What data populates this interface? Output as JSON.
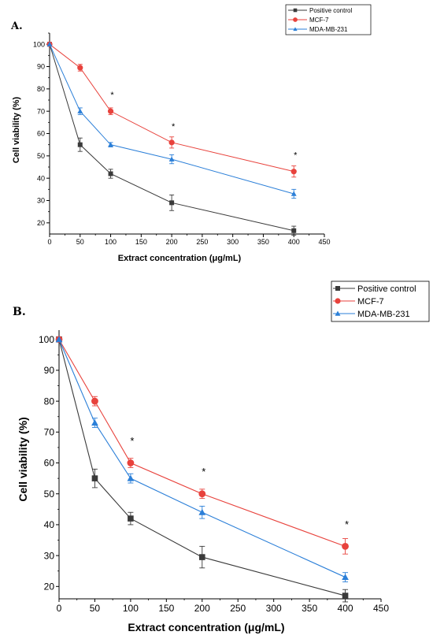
{
  "chart_data": [
    {
      "type": "line",
      "panel_label": "A.",
      "xlabel": "Extract concentration (μg/mL)",
      "ylabel": "Cell viability (%)",
      "xlim": [
        0,
        450
      ],
      "ylim": [
        15,
        105
      ],
      "x_ticks": [
        0,
        50,
        100,
        150,
        200,
        250,
        300,
        350,
        400,
        450
      ],
      "y_ticks": [
        20,
        30,
        40,
        50,
        60,
        70,
        80,
        90,
        100
      ],
      "x": [
        0,
        50,
        100,
        200,
        400
      ],
      "legend_position": "top-right",
      "series": [
        {
          "name": "Positive control",
          "color": "#3a3a3a",
          "marker": "square",
          "values": [
            100,
            55,
            42,
            29,
            16.5
          ],
          "errors": [
            0,
            3,
            2,
            3.5,
            2
          ]
        },
        {
          "name": "MCF-7",
          "color": "#e8423c",
          "marker": "circle",
          "values": [
            100,
            89.5,
            70,
            56,
            43
          ],
          "errors": [
            0,
            1.5,
            1.5,
            2.5,
            2.5
          ]
        },
        {
          "name": "MDA-MB-231",
          "color": "#2b7fd8",
          "marker": "triangle",
          "values": [
            100,
            70,
            55,
            48.5,
            33
          ],
          "errors": [
            0,
            1.5,
            1,
            2,
            2
          ]
        }
      ],
      "annotations": [
        {
          "x": 100,
          "y": 76,
          "text": "*"
        },
        {
          "x": 200,
          "y": 62,
          "text": "*"
        },
        {
          "x": 400,
          "y": 49,
          "text": "*"
        }
      ]
    },
    {
      "type": "line",
      "panel_label": "B.",
      "xlabel": "Extract concentration (μg/mL)",
      "ylabel": "Cell viability (%)",
      "xlim": [
        0,
        450
      ],
      "ylim": [
        16,
        103
      ],
      "x_ticks": [
        0,
        50,
        100,
        150,
        200,
        250,
        300,
        350,
        400,
        450
      ],
      "y_ticks": [
        20,
        30,
        40,
        50,
        60,
        70,
        80,
        90,
        100
      ],
      "x": [
        0,
        50,
        100,
        200,
        400
      ],
      "legend_position": "top-right",
      "series": [
        {
          "name": "Positive control",
          "color": "#3a3a3a",
          "marker": "square",
          "values": [
            100,
            55,
            42,
            29.5,
            17
          ],
          "errors": [
            0,
            3,
            2,
            3.5,
            2
          ]
        },
        {
          "name": "MCF-7",
          "color": "#e8423c",
          "marker": "circle",
          "values": [
            100,
            80,
            60,
            50,
            33
          ],
          "errors": [
            0,
            1.5,
            1.5,
            1.5,
            2.5
          ]
        },
        {
          "name": "MDA-MB-231",
          "color": "#2b7fd8",
          "marker": "triangle",
          "values": [
            100,
            73,
            55,
            44,
            23
          ],
          "errors": [
            0,
            1.5,
            1.5,
            2,
            1.5
          ]
        }
      ],
      "annotations": [
        {
          "x": 100,
          "y": 66,
          "text": "*"
        },
        {
          "x": 200,
          "y": 56,
          "text": "*"
        },
        {
          "x": 400,
          "y": 39,
          "text": "*"
        }
      ]
    }
  ]
}
